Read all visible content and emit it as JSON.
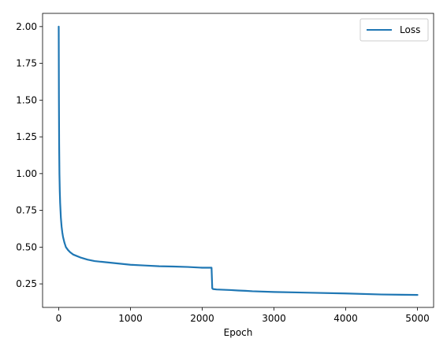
{
  "chart_data": {
    "type": "line",
    "title": "",
    "xlabel": "Epoch",
    "ylabel": "",
    "xlim": [
      -225,
      5225
    ],
    "ylim": [
      0.09,
      2.09
    ],
    "x_ticks": [
      0,
      1000,
      2000,
      3000,
      4000,
      5000
    ],
    "x_tick_labels": [
      "0",
      "1000",
      "2000",
      "3000",
      "4000",
      "5000"
    ],
    "y_ticks": [
      0.25,
      0.5,
      0.75,
      1.0,
      1.25,
      1.5,
      1.75,
      2.0
    ],
    "y_tick_labels": [
      "0.25",
      "0.50",
      "0.75",
      "1.00",
      "1.25",
      "1.50",
      "1.75",
      "2.00"
    ],
    "grid": false,
    "legend": {
      "position": "top-right"
    },
    "series": [
      {
        "name": "Loss",
        "color": "#1f77b4",
        "x": [
          0,
          3,
          6,
          10,
          15,
          20,
          30,
          40,
          50,
          60,
          80,
          100,
          130,
          160,
          200,
          250,
          300,
          400,
          500,
          600,
          800,
          1000,
          1200,
          1400,
          1600,
          1800,
          2000,
          2100,
          2130,
          2140,
          2150,
          2200,
          2300,
          2400,
          2500,
          2600,
          2700,
          3000,
          3500,
          4000,
          4500,
          5000
        ],
        "y": [
          2.0,
          1.5,
          1.2,
          1.0,
          0.88,
          0.8,
          0.7,
          0.64,
          0.6,
          0.57,
          0.53,
          0.5,
          0.48,
          0.465,
          0.45,
          0.44,
          0.43,
          0.415,
          0.405,
          0.4,
          0.39,
          0.38,
          0.375,
          0.37,
          0.368,
          0.365,
          0.36,
          0.36,
          0.36,
          0.22,
          0.215,
          0.212,
          0.21,
          0.208,
          0.205,
          0.203,
          0.2,
          0.195,
          0.19,
          0.185,
          0.178,
          0.175
        ]
      }
    ]
  }
}
